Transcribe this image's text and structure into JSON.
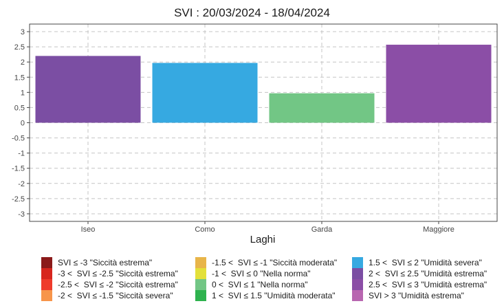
{
  "chart_data": {
    "type": "bar",
    "title": "SVI : 20/03/2024 - 18/04/2024",
    "xlabel": "Laghi",
    "ylabel": "",
    "categories": [
      "Iseo",
      "Como",
      "Garda",
      "Maggiore"
    ],
    "values": [
      2.2,
      1.97,
      0.97,
      2.57
    ],
    "bar_colors": [
      "#7b4ea3",
      "#36a9e1",
      "#72c685",
      "#8b4ea6"
    ],
    "ylim": [
      -3.25,
      3.25
    ],
    "yticks": [
      3,
      2.5,
      2,
      1.5,
      1,
      0.5,
      0,
      -0.5,
      -1,
      -1.5,
      -2,
      -2.5,
      -3
    ],
    "ytick_labels": [
      "3",
      "2.5",
      "2",
      "1.5",
      "1",
      "0.5",
      "0",
      "-0.5",
      "-1",
      "-1.5",
      "-2",
      "-2.5",
      "-3"
    ],
    "grid": true,
    "legend_position": "bottom",
    "legend": [
      [
        {
          "label": "SVI ≤ -3 \"Siccità estrema\"",
          "color": "#8b1a1a"
        },
        {
          "label": "-3 <  SVI ≤ -2.5 \"Siccità estrema\"",
          "color": "#d7261e"
        },
        {
          "label": "-2.5 <  SVI ≤ -2 \"Siccità estrema\"",
          "color": "#ef3b2c"
        },
        {
          "label": "-2 <  SVI ≤ -1.5 \"Siccità severa\"",
          "color": "#f7954a"
        }
      ],
      [
        {
          "label": "-1.5 <  SVI ≤ -1 \"Siccità moderata\"",
          "color": "#e8b54a"
        },
        {
          "label": "-1 <  SVI ≤ 0 \"Nella norma\"",
          "color": "#e3e03a"
        },
        {
          "label": "0 <  SVI ≤ 1 \"Nella norma\"",
          "color": "#72c685"
        },
        {
          "label": "1 <  SVI ≤ 1.5 \"Umidità moderata\"",
          "color": "#2eb24e"
        }
      ],
      [
        {
          "label": "1.5 <  SVI ≤ 2 \"Umidità severa\"",
          "color": "#36a9e1"
        },
        {
          "label": "2 <  SVI ≤ 2.5 \"Umidità estrema\"",
          "color": "#7b4ea3"
        },
        {
          "label": "2.5 <  SVI ≤ 3 \"Umidità estrema\"",
          "color": "#8b4ea6"
        },
        {
          "label": "SVI > 3 \"Umidità estrema\"",
          "color": "#b866b0"
        }
      ]
    ]
  }
}
